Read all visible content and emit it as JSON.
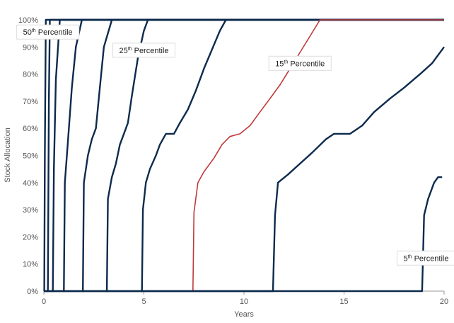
{
  "chart_data": {
    "type": "line",
    "title": "",
    "xlabel": "Years",
    "ylabel": "Stock Allocation",
    "xlim": [
      0,
      20
    ],
    "ylim": [
      0,
      100
    ],
    "x_ticks": [
      0,
      5,
      10,
      15,
      20
    ],
    "y_ticks": [
      0,
      10,
      20,
      30,
      40,
      50,
      60,
      70,
      80,
      90,
      100
    ],
    "y_tick_labels": [
      "0%",
      "10%",
      "20%",
      "30%",
      "40%",
      "50%",
      "60%",
      "70%",
      "80%",
      "90%",
      "100%"
    ],
    "x_tick_labels": [
      "0",
      "5",
      "10",
      "15",
      "20"
    ],
    "grid": false,
    "colors": {
      "navy": "#0d2a4d",
      "red": "#c0393b"
    },
    "series": [
      {
        "color": "#0d2a4d",
        "points": [
          [
            0,
            0
          ],
          [
            0.02,
            0
          ],
          [
            0.05,
            50
          ],
          [
            0.1,
            100
          ],
          [
            20,
            100
          ]
        ]
      },
      {
        "color": "#0d2a4d",
        "points": [
          [
            0.15,
            0
          ],
          [
            0.2,
            0
          ],
          [
            0.25,
            70
          ],
          [
            0.3,
            100
          ],
          [
            20,
            100
          ]
        ]
      },
      {
        "color": "#0d2a4d",
        "points": [
          [
            0.4,
            0
          ],
          [
            0.45,
            0
          ],
          [
            0.5,
            45
          ],
          [
            0.6,
            78
          ],
          [
            0.8,
            100
          ],
          [
            20,
            100
          ]
        ]
      },
      {
        "color": "#0d2a4d",
        "points": [
          [
            0.95,
            0
          ],
          [
            1.0,
            0
          ],
          [
            1.05,
            40
          ],
          [
            1.2,
            55
          ],
          [
            1.4,
            75
          ],
          [
            1.6,
            90
          ],
          [
            1.9,
            100
          ],
          [
            20,
            100
          ]
        ]
      },
      {
        "color": "#0d2a4d",
        "points": [
          [
            1.9,
            0
          ],
          [
            1.95,
            0
          ],
          [
            2.0,
            40
          ],
          [
            2.2,
            50
          ],
          [
            2.4,
            56
          ],
          [
            2.6,
            60
          ],
          [
            2.8,
            75
          ],
          [
            3.0,
            90
          ],
          [
            3.4,
            100
          ],
          [
            20,
            100
          ]
        ]
      },
      {
        "color": "#0d2a4d",
        "points": [
          [
            3.1,
            0
          ],
          [
            3.15,
            0
          ],
          [
            3.2,
            34
          ],
          [
            3.4,
            42
          ],
          [
            3.6,
            47
          ],
          [
            3.8,
            54
          ],
          [
            4.0,
            58
          ],
          [
            4.2,
            62
          ],
          [
            4.4,
            72
          ],
          [
            4.7,
            86
          ],
          [
            5.0,
            96
          ],
          [
            5.2,
            100
          ],
          [
            20,
            100
          ]
        ]
      },
      {
        "color": "#0d2a4d",
        "points": [
          [
            4.85,
            0
          ],
          [
            4.9,
            0
          ],
          [
            4.95,
            30
          ],
          [
            5.1,
            40
          ],
          [
            5.3,
            45
          ],
          [
            5.6,
            50
          ],
          [
            5.8,
            54
          ],
          [
            6.1,
            58
          ],
          [
            6.5,
            58
          ],
          [
            6.8,
            62
          ],
          [
            7.2,
            67
          ],
          [
            7.6,
            74
          ],
          [
            8.0,
            82
          ],
          [
            8.4,
            89
          ],
          [
            8.8,
            96
          ],
          [
            9.1,
            100
          ],
          [
            20,
            100
          ]
        ]
      },
      {
        "color": "#c0393b",
        "points": [
          [
            0,
            0
          ],
          [
            7.45,
            0
          ],
          [
            7.5,
            29
          ],
          [
            7.7,
            40
          ],
          [
            8.0,
            44
          ],
          [
            8.5,
            49
          ],
          [
            8.9,
            54
          ],
          [
            9.3,
            57
          ],
          [
            9.8,
            58
          ],
          [
            10.3,
            61
          ],
          [
            10.8,
            66
          ],
          [
            11.3,
            71
          ],
          [
            11.8,
            76
          ],
          [
            12.3,
            82
          ],
          [
            12.8,
            88
          ],
          [
            13.3,
            94
          ],
          [
            13.8,
            100
          ],
          [
            20,
            100
          ]
        ]
      },
      {
        "color": "#0d2a4d",
        "points": [
          [
            0,
            0
          ],
          [
            11.45,
            0
          ],
          [
            11.55,
            28
          ],
          [
            11.7,
            40
          ],
          [
            12.2,
            43
          ],
          [
            12.8,
            47
          ],
          [
            13.4,
            51
          ],
          [
            14.1,
            56
          ],
          [
            14.5,
            58
          ],
          [
            15.3,
            58
          ],
          [
            15.9,
            61
          ],
          [
            16.5,
            66
          ],
          [
            17.3,
            71
          ],
          [
            18.0,
            75
          ],
          [
            18.8,
            80
          ],
          [
            19.4,
            84
          ],
          [
            20.0,
            90
          ]
        ]
      },
      {
        "color": "#0d2a4d",
        "points": [
          [
            0,
            0
          ],
          [
            18.9,
            0
          ],
          [
            19.0,
            28
          ],
          [
            19.2,
            34
          ],
          [
            19.5,
            40
          ],
          [
            19.7,
            42
          ],
          [
            19.9,
            42
          ]
        ]
      }
    ],
    "annotations": [
      {
        "base": "50",
        "sup": "th",
        "text": " Percentile",
        "x": 0.2,
        "y": 95.5
      },
      {
        "base": "25",
        "sup": "th",
        "text": " Percentile",
        "x": 5.0,
        "y": 88.8
      },
      {
        "base": "15",
        "sup": "th",
        "text": " Percentile",
        "x": 12.8,
        "y": 84.0
      },
      {
        "base": "5",
        "sup": "th",
        "text": " Percentile",
        "x": 19.1,
        "y": 12.2
      }
    ]
  }
}
